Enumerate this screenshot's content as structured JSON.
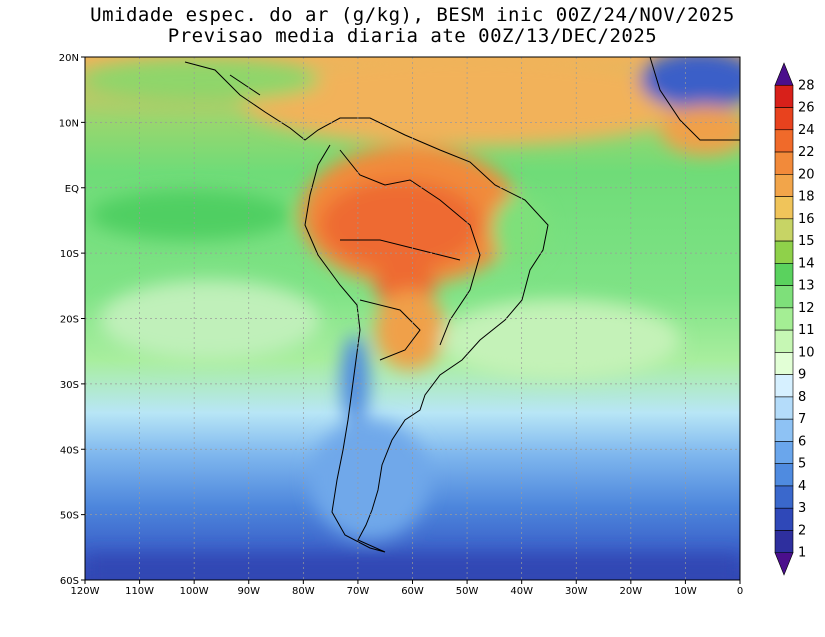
{
  "title": {
    "line1": "Umidade espec. do ar (g/kg), BESM inic 00Z/24/NOV/2025",
    "line2": "Previsao media diaria ate 00Z/13/DEC/2025"
  },
  "axes": {
    "lat_labels": [
      "20N",
      "10N",
      "EQ",
      "10S",
      "20S",
      "30S",
      "40S",
      "50S",
      "60S"
    ],
    "lon_labels": [
      "120W",
      "110W",
      "100W",
      "90W",
      "80W",
      "70W",
      "60W",
      "50W",
      "40W",
      "30W",
      "20W",
      "10W",
      "0"
    ]
  },
  "colorbar": {
    "levels": [
      "1",
      "2",
      "3",
      "4",
      "5",
      "6",
      "7",
      "8",
      "9",
      "10",
      "11",
      "12",
      "13",
      "14",
      "15",
      "16",
      "18",
      "20",
      "22",
      "24",
      "26",
      "28"
    ],
    "colors": [
      "#4b0f8c",
      "#2e2f9e",
      "#2f48b8",
      "#3a68cc",
      "#4f8be0",
      "#6aa6ec",
      "#8ec2f4",
      "#b4dcfa",
      "#d6f0ff",
      "#e2ffd6",
      "#c6f7b4",
      "#a4ee94",
      "#7ee07a",
      "#5ad25e",
      "#8fd14a",
      "#c7d465",
      "#f0c45a",
      "#f2a54a",
      "#f28a3a",
      "#f06a2a",
      "#e8421e",
      "#d8201a",
      "#c01010"
    ]
  },
  "map": {
    "region": "South America and adjacent Atlantic/Pacific",
    "lon_range": [
      -120,
      0
    ],
    "lat_range": [
      -60,
      20
    ],
    "field": "specific humidity"
  }
}
